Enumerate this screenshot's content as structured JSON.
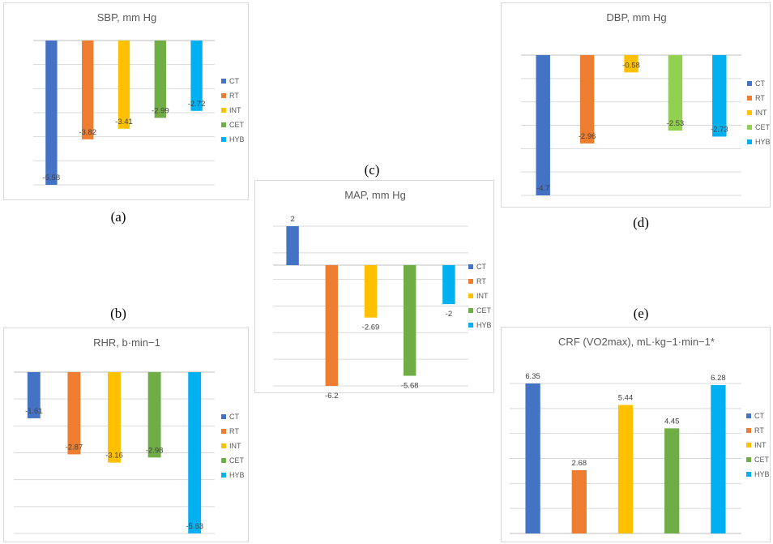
{
  "captions": {
    "a": "(a)",
    "b": "(b)",
    "c": "(c)",
    "d": "(d)",
    "e": "(e)"
  },
  "chart_data": [
    {
      "id": "sbp",
      "type": "bar",
      "title": "SBP, mm Hg",
      "categories": [
        "CT",
        "RT",
        "INT",
        "CET",
        "HYB"
      ],
      "values": [
        -5.58,
        -3.82,
        -3.41,
        -2.99,
        -2.72
      ],
      "colors": [
        "#4472C4",
        "#ED7D31",
        "#FFC000",
        "#70AD47",
        "#00B0F0"
      ],
      "legend": [
        "CT",
        "RT",
        "INT",
        "CET",
        "HYB"
      ],
      "legend_position": "right",
      "grid": true
    },
    {
      "id": "dbp",
      "type": "bar",
      "title": "DBP, mm Hg",
      "categories": [
        "CT",
        "RT",
        "INT",
        "CET",
        "HYB"
      ],
      "values": [
        -4.7,
        -2.96,
        -0.58,
        -2.53,
        -2.73
      ],
      "colors": [
        "#4472C4",
        "#ED7D31",
        "#FFC000",
        "#92D050",
        "#00B0F0"
      ],
      "legend": [
        "CT",
        "RT",
        "INT",
        "CET",
        "HYB"
      ],
      "legend_position": "right",
      "grid": true
    },
    {
      "id": "map",
      "type": "bar",
      "title": "MAP, mm Hg",
      "categories": [
        "CT",
        "RT",
        "INT",
        "CET",
        "HYB"
      ],
      "values": [
        2,
        -6.2,
        -2.69,
        -5.68,
        -2
      ],
      "colors": [
        "#4472C4",
        "#ED7D31",
        "#FFC000",
        "#70AD47",
        "#00B0F0"
      ],
      "legend": [
        "CT",
        "RT",
        "INT",
        "CET",
        "HYB"
      ],
      "legend_position": "right",
      "grid": true
    },
    {
      "id": "rhr",
      "type": "bar",
      "title": "RHR, b·min−1",
      "categories": [
        "CT",
        "RT",
        "INT",
        "CET",
        "HYB"
      ],
      "values": [
        -1.61,
        -2.87,
        -3.16,
        -2.98,
        -5.63
      ],
      "colors": [
        "#4472C4",
        "#ED7D31",
        "#FFC000",
        "#70AD47",
        "#00B0F0"
      ],
      "legend": [
        "CT",
        "RT",
        "INT",
        "CET",
        "HYB"
      ],
      "legend_position": "right",
      "grid": true
    },
    {
      "id": "crf",
      "type": "bar",
      "title": "CRF (VO2max), mL·kg−1·min−1*",
      "categories": [
        "CT",
        "RT",
        "INT",
        "CET",
        "HYB"
      ],
      "values": [
        6.35,
        2.68,
        5.44,
        4.45,
        6.28
      ],
      "colors": [
        "#4472C4",
        "#ED7D31",
        "#FFC000",
        "#70AD47",
        "#00B0F0"
      ],
      "legend": [
        "CT",
        "RT",
        "INT",
        "CET",
        "HYB"
      ],
      "legend_position": "right",
      "grid": true
    }
  ]
}
